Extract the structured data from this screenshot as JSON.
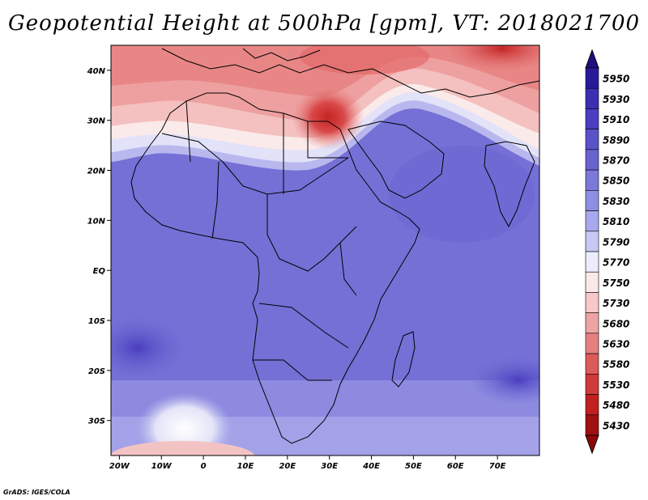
{
  "title": "Geopotential Height at 500hPa [gpm], VT: 2018021700",
  "credit": "GrADS: IGES/COLA",
  "map": {
    "lat_labels": [
      "40N",
      "30N",
      "20N",
      "10N",
      "EQ",
      "10S",
      "20S",
      "30S"
    ],
    "lon_labels": [
      "20W",
      "10W",
      "0",
      "10E",
      "20E",
      "30E",
      "40E",
      "50E",
      "60E",
      "70E"
    ],
    "lat_values": [
      40,
      30,
      20,
      10,
      0,
      -10,
      -20,
      -30
    ],
    "lon_values": [
      -20,
      -10,
      0,
      10,
      20,
      30,
      40,
      50,
      60,
      70
    ],
    "lat_range": [
      -37,
      45
    ],
    "lon_range": [
      -22,
      80
    ]
  },
  "colorbar": {
    "levels": [
      "5950",
      "5930",
      "5910",
      "5890",
      "5870",
      "5850",
      "5830",
      "5810",
      "5790",
      "5770",
      "5750",
      "5730",
      "5680",
      "5630",
      "5580",
      "5530",
      "5480",
      "5430"
    ],
    "colors": [
      "#2a1a9a",
      "#3a2fb0",
      "#4a3fc0",
      "#5a52c8",
      "#6a64d0",
      "#7b78d8",
      "#8f8ee2",
      "#a8a8ec",
      "#c8c8f4",
      "#ececfa",
      "#fbe8e8",
      "#f6c8c8",
      "#eea4a4",
      "#e68080",
      "#dd5a5a",
      "#cf3a3a",
      "#c02020",
      "#a01010"
    ],
    "top_arrow_color": "#1f1080",
    "bottom_arrow_color": "#8f0808"
  }
}
